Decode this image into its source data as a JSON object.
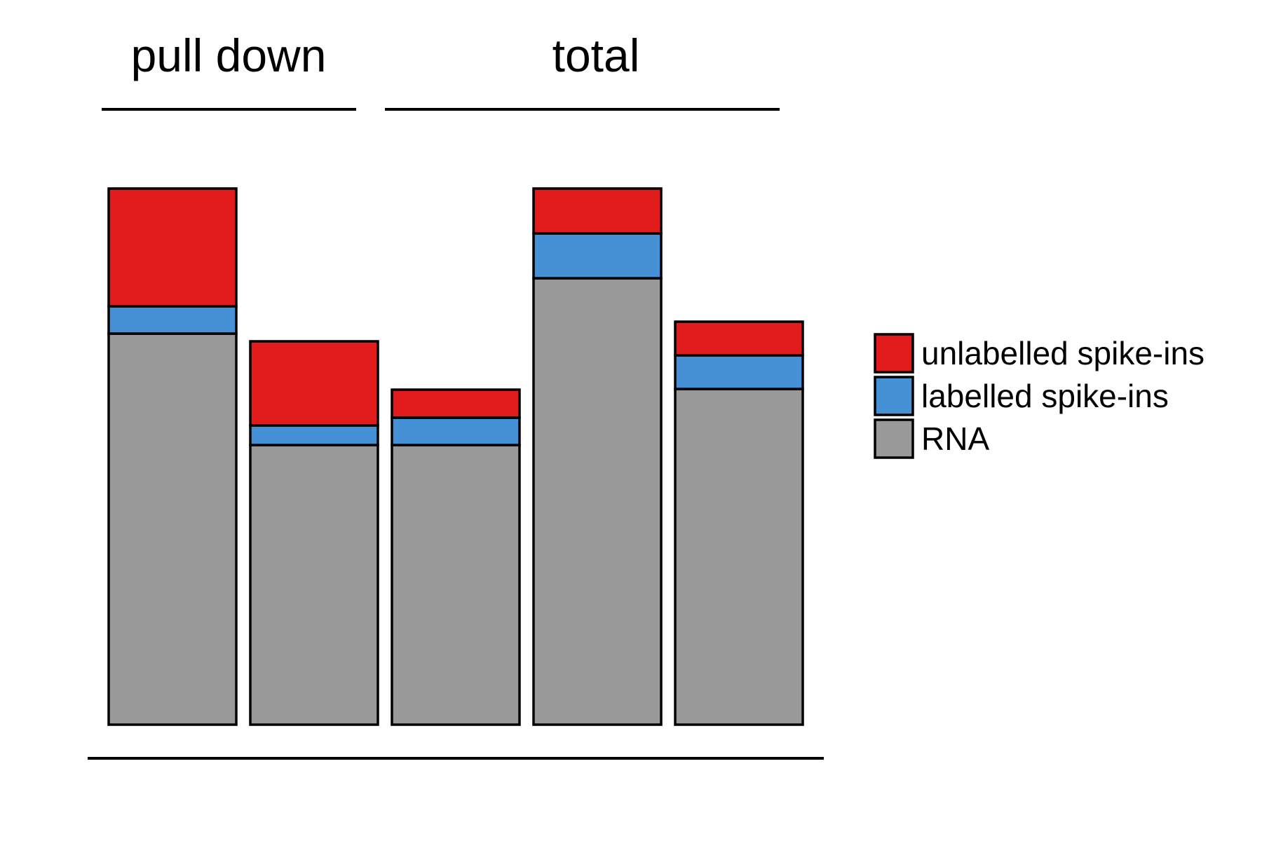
{
  "chart_data": {
    "type": "bar",
    "stacked": true,
    "categories": [
      "",
      "",
      "",
      "",
      ""
    ],
    "groups": [
      {
        "label": "pull down",
        "bars": [
          0,
          1
        ]
      },
      {
        "label": "total",
        "bars": [
          2,
          3,
          4
        ]
      }
    ],
    "series": [
      {
        "name": "RNA",
        "color": "#999999",
        "values": [
          558,
          399,
          399,
          637,
          479
        ]
      },
      {
        "name": "labelled spike-ins",
        "color": "#4691d5",
        "values": [
          39,
          28,
          39,
          64,
          48
        ]
      },
      {
        "name": "unlabelled spike-ins",
        "color": "#e21b1d",
        "values": [
          168,
          120,
          40,
          64,
          48
        ]
      }
    ],
    "ylim": [
      0,
      770
    ],
    "axes_visible": false,
    "grid": false,
    "legend": {
      "position": "right",
      "order": [
        "unlabelled spike-ins",
        "labelled spike-ins",
        "RNA"
      ]
    }
  }
}
